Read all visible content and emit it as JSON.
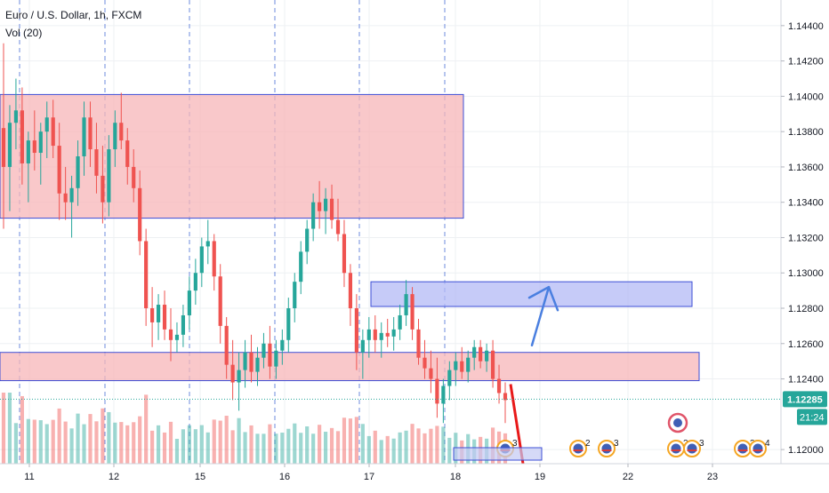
{
  "header": {
    "symbol_title": "Euro / U.S. Dollar, 1h, FXCM",
    "volume_label": "Vol (20)"
  },
  "price_axis": {
    "ticks": [
      "1.14400",
      "1.14200",
      "1.14000",
      "1.13800",
      "1.13600",
      "1.13400",
      "1.13200",
      "1.13000",
      "1.12800",
      "1.12600",
      "1.12400",
      "1.12000"
    ],
    "current_price": "1.12285",
    "countdown": "21:24"
  },
  "time_axis": {
    "ticks": [
      "11",
      "12",
      "15",
      "16",
      "17",
      "18",
      "19",
      "22",
      "23"
    ]
  },
  "colors": {
    "up": "#26a69a",
    "down": "#ef5350",
    "zone_red_fill": "#f7b5b8",
    "zone_blue_fill": "#b3b9f5",
    "zone_border": "#3d4fd6",
    "arrow_blue": "#4a7fe0",
    "arrow_red": "#e81919",
    "price_label_bg": "#26a69a",
    "grid": "#eef0f3",
    "session_line": "#4a6fd6"
  },
  "chart_data": {
    "type": "candlestick",
    "symbol": "EURUSD",
    "timeframe": "1h",
    "ylim": [
      1.1192,
      1.1453
    ],
    "current_price": 1.12285,
    "zones": [
      {
        "color": "red",
        "from_day": "10",
        "to_day": "18",
        "low": 1.1331,
        "high": 1.1401
      },
      {
        "color": "blue",
        "from_day": "17",
        "to_day": "22",
        "low": 1.1281,
        "high": 1.1295
      },
      {
        "color": "red",
        "from_day": "10",
        "to_day": "22",
        "low": 1.1239,
        "high": 1.1255
      }
    ],
    "annotations": [
      {
        "type": "arrow",
        "color": "blue",
        "direction": "up",
        "from_price": 1.1259,
        "to_price": 1.1292
      },
      {
        "type": "line",
        "color": "red",
        "direction": "down",
        "from_price": 1.1237,
        "to_price": 1.1192
      }
    ],
    "events": [
      {
        "day": "18",
        "count": "3"
      },
      {
        "day": "19",
        "count": "2"
      },
      {
        "day": "19",
        "count": "3"
      },
      {
        "day": "22",
        "count": "2"
      },
      {
        "day": "22",
        "count": "3"
      },
      {
        "day": "23",
        "count": "3"
      },
      {
        "day": "23",
        "count": "4"
      }
    ],
    "candles": [
      [
        1.1382,
        1.143,
        1.1325,
        1.136
      ],
      [
        1.136,
        1.1395,
        1.1335,
        1.1385
      ],
      [
        1.1385,
        1.141,
        1.137,
        1.1392
      ],
      [
        1.1392,
        1.1405,
        1.135,
        1.1362
      ],
      [
        1.1362,
        1.138,
        1.134,
        1.1375
      ],
      [
        1.1375,
        1.1392,
        1.1358,
        1.1368
      ],
      [
        1.1368,
        1.1385,
        1.135,
        1.138
      ],
      [
        1.138,
        1.1397,
        1.1365,
        1.1388
      ],
      [
        1.1388,
        1.1398,
        1.1365,
        1.1372
      ],
      [
        1.1372,
        1.1385,
        1.133,
        1.1345
      ],
      [
        1.1345,
        1.136,
        1.133,
        1.134
      ],
      [
        1.134,
        1.1355,
        1.132,
        1.1348
      ],
      [
        1.1348,
        1.1375,
        1.1338,
        1.1366
      ],
      [
        1.1366,
        1.1397,
        1.1355,
        1.1388
      ],
      [
        1.1388,
        1.1397,
        1.136,
        1.137
      ],
      [
        1.137,
        1.1385,
        1.1345,
        1.1355
      ],
      [
        1.1355,
        1.1372,
        1.1328,
        1.134
      ],
      [
        1.134,
        1.1378,
        1.1332,
        1.137
      ],
      [
        1.137,
        1.1392,
        1.136,
        1.1385
      ],
      [
        1.1385,
        1.1402,
        1.137,
        1.1375
      ],
      [
        1.1375,
        1.1382,
        1.135,
        1.136
      ],
      [
        1.136,
        1.137,
        1.134,
        1.1348
      ],
      [
        1.1348,
        1.1358,
        1.131,
        1.1318
      ],
      [
        1.1318,
        1.1325,
        1.127,
        1.128
      ],
      [
        1.128,
        1.1292,
        1.1258,
        1.1272
      ],
      [
        1.1272,
        1.1288,
        1.1262,
        1.1282
      ],
      [
        1.1282,
        1.129,
        1.1262,
        1.1268
      ],
      [
        1.1268,
        1.128,
        1.125,
        1.1262
      ],
      [
        1.1262,
        1.1272,
        1.1255,
        1.1265
      ],
      [
        1.1265,
        1.1282,
        1.1258,
        1.1276
      ],
      [
        1.1276,
        1.1298,
        1.1268,
        1.129
      ],
      [
        1.129,
        1.1308,
        1.1282,
        1.13
      ],
      [
        1.13,
        1.132,
        1.1292,
        1.1315
      ],
      [
        1.1315,
        1.133,
        1.1305,
        1.1318
      ],
      [
        1.1318,
        1.1322,
        1.129,
        1.1298
      ],
      [
        1.1298,
        1.1305,
        1.126,
        1.127
      ],
      [
        1.127,
        1.1275,
        1.124,
        1.1248
      ],
      [
        1.1248,
        1.1262,
        1.1228,
        1.1238
      ],
      [
        1.1238,
        1.1255,
        1.1222,
        1.1245
      ],
      [
        1.1245,
        1.1262,
        1.1235,
        1.1255
      ],
      [
        1.1255,
        1.1265,
        1.1238,
        1.1244
      ],
      [
        1.1244,
        1.1258,
        1.1236,
        1.1252
      ],
      [
        1.1252,
        1.1266,
        1.1246,
        1.126
      ],
      [
        1.126,
        1.127,
        1.124,
        1.1247
      ],
      [
        1.1247,
        1.1262,
        1.124,
        1.1256
      ],
      [
        1.1256,
        1.1268,
        1.1248,
        1.1262
      ],
      [
        1.1262,
        1.1286,
        1.1255,
        1.128
      ],
      [
        1.128,
        1.13,
        1.1272,
        1.1295
      ],
      [
        1.1295,
        1.1318,
        1.1288,
        1.1312
      ],
      [
        1.1312,
        1.133,
        1.1305,
        1.1325
      ],
      [
        1.1325,
        1.1345,
        1.1318,
        1.134
      ],
      [
        1.134,
        1.1352,
        1.1325,
        1.1335
      ],
      [
        1.1335,
        1.1348,
        1.1322,
        1.1342
      ],
      [
        1.1342,
        1.135,
        1.1325,
        1.133
      ],
      [
        1.133,
        1.1342,
        1.1318,
        1.1322
      ],
      [
        1.1322,
        1.133,
        1.1292,
        1.13
      ],
      [
        1.13,
        1.1305,
        1.127,
        1.128
      ],
      [
        1.128,
        1.1288,
        1.1245,
        1.1255
      ],
      [
        1.1255,
        1.1268,
        1.124,
        1.1262
      ],
      [
        1.1262,
        1.1275,
        1.1252,
        1.1268
      ],
      [
        1.1268,
        1.1276,
        1.1255,
        1.1262
      ],
      [
        1.1262,
        1.1272,
        1.1252,
        1.1266
      ],
      [
        1.1266,
        1.1274,
        1.1258,
        1.1264
      ],
      [
        1.1264,
        1.1275,
        1.1256,
        1.1268
      ],
      [
        1.1268,
        1.1282,
        1.1262,
        1.1276
      ],
      [
        1.1276,
        1.1296,
        1.127,
        1.1288
      ],
      [
        1.1288,
        1.1292,
        1.1262,
        1.1268
      ],
      [
        1.1268,
        1.1274,
        1.1248,
        1.1252
      ],
      [
        1.1252,
        1.1262,
        1.124,
        1.1246
      ],
      [
        1.1246,
        1.1256,
        1.1232,
        1.124
      ],
      [
        1.124,
        1.1252,
        1.1218,
        1.1226
      ],
      [
        1.1226,
        1.124,
        1.1215,
        1.1236
      ],
      [
        1.1236,
        1.125,
        1.1228,
        1.1245
      ],
      [
        1.1245,
        1.1255,
        1.1236,
        1.125
      ],
      [
        1.125,
        1.1258,
        1.124,
        1.1244
      ],
      [
        1.1244,
        1.1256,
        1.1238,
        1.1252
      ],
      [
        1.1252,
        1.1262,
        1.1245,
        1.1258
      ],
      [
        1.1258,
        1.1262,
        1.1246,
        1.125
      ],
      [
        1.125,
        1.126,
        1.1244,
        1.1256
      ],
      [
        1.1256,
        1.1262,
        1.1235,
        1.124
      ],
      [
        1.124,
        1.1248,
        1.1226,
        1.1232
      ],
      [
        1.1232,
        1.1238,
        1.1215,
        1.1228
      ]
    ]
  }
}
